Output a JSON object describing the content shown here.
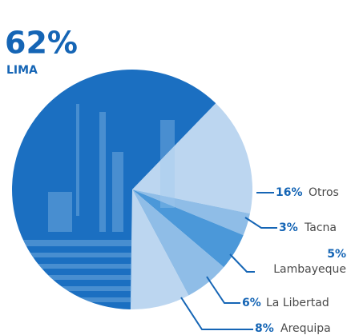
{
  "chart_data": {
    "type": "pie",
    "categories": [
      "Otros",
      "Tacna",
      "Lambayeque",
      "La Libertad",
      "Arequipa",
      "LIMA"
    ],
    "values": [
      16,
      3,
      5,
      6,
      8,
      62
    ],
    "value_labels": [
      "16%",
      "3%",
      "5%",
      "6%",
      "8%",
      "62%"
    ],
    "colors": [
      "#bcd6f0",
      "#8fbde7",
      "#4b98d9",
      "#8fbde7",
      "#bcd6f0",
      "#1b6fc1"
    ]
  }
}
